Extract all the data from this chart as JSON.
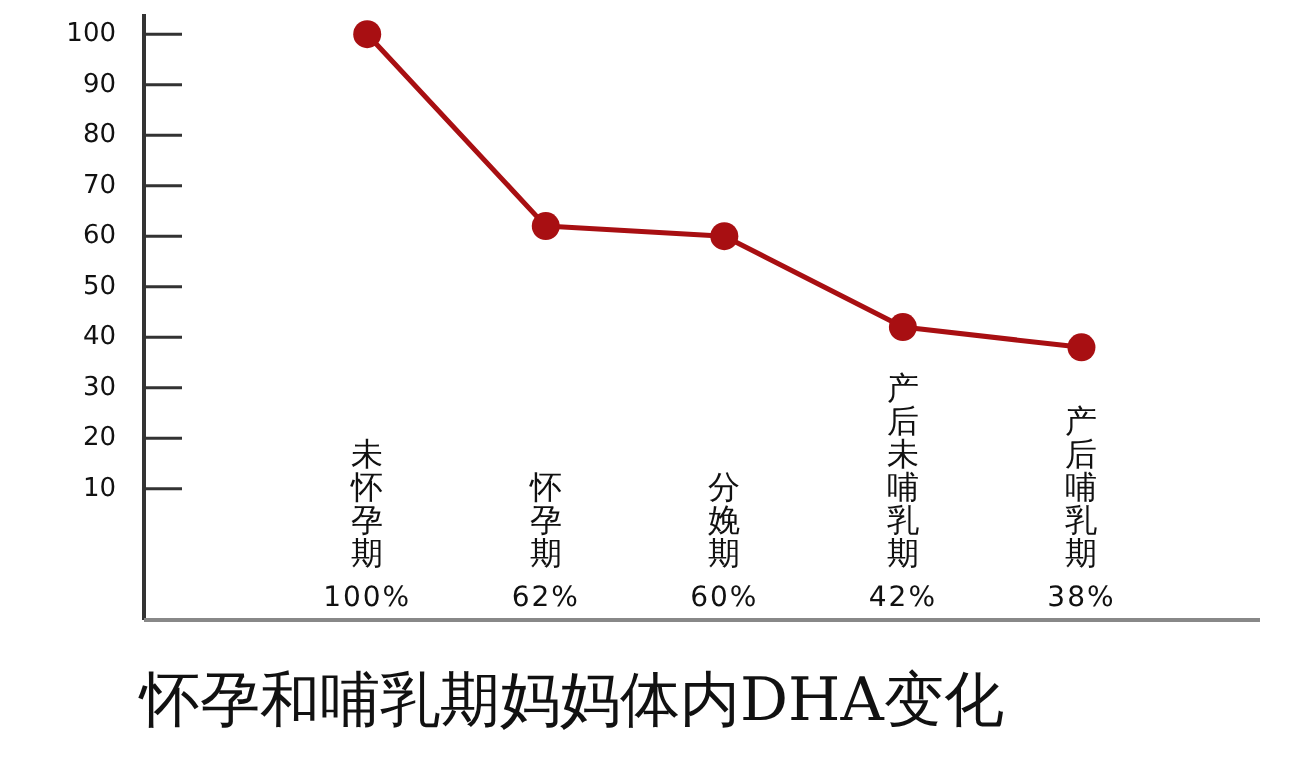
{
  "chart_data": {
    "type": "line",
    "title": "怀孕和哺乳期妈妈体内DHA变化",
    "categories": [
      "未怀孕期",
      "怀孕期",
      "分娩期",
      "产后未哺乳期",
      "产后哺乳期"
    ],
    "values": [
      100,
      62,
      60,
      42,
      38
    ],
    "annotations": [
      "100%",
      "62%",
      "60%",
      "42%",
      "38%"
    ],
    "color": "#a80f12",
    "marker": "circle",
    "ylim": [
      -16,
      104
    ],
    "yticks": [
      10,
      20,
      30,
      40,
      50,
      60,
      70,
      80,
      90,
      100
    ]
  }
}
